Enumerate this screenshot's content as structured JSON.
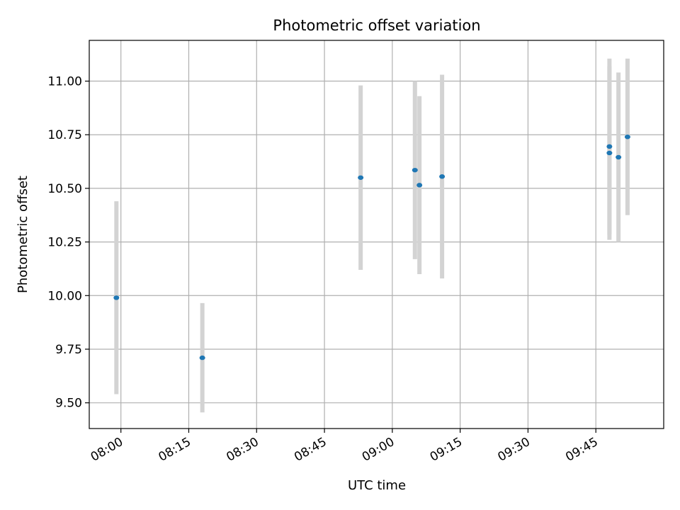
{
  "chart_data": {
    "type": "scatter",
    "title": "Photometric offset variation",
    "xlabel": "UTC time",
    "ylabel": "Photometric offset",
    "x_ticks": [
      "08:00",
      "08:15",
      "08:30",
      "08:45",
      "09:00",
      "09:15",
      "09:30",
      "09:45"
    ],
    "y_ticks": [
      "9.50",
      "9.75",
      "10.00",
      "10.25",
      "10.50",
      "10.75",
      "11.00"
    ],
    "xlim": [
      "07:53",
      "10:00"
    ],
    "ylim": [
      9.38,
      11.19
    ],
    "grid": true,
    "series": [
      {
        "x": [
          "07:59",
          "08:18",
          "08:53",
          "09:05",
          "09:06",
          "09:11",
          "09:48",
          "09:48",
          "09:50",
          "09:52"
        ],
        "y": [
          9.99,
          9.71,
          10.55,
          10.585,
          10.515,
          10.555,
          10.665,
          10.695,
          10.645,
          10.74
        ],
        "yerr": [
          0.45,
          0.255,
          0.43,
          0.415,
          0.415,
          0.475,
          0.405,
          0.41,
          0.395,
          0.365
        ]
      }
    ],
    "colors": {
      "points": "#1f77b4",
      "errorbars": "#d3d3d3",
      "grid": "#b0b0b0"
    }
  }
}
